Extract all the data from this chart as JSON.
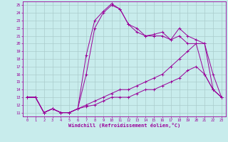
{
  "xlabel": "Windchill (Refroidissement éolien,°C)",
  "xlim": [
    -0.5,
    23.5
  ],
  "ylim": [
    10.5,
    25.5
  ],
  "xticks": [
    0,
    1,
    2,
    3,
    4,
    5,
    6,
    7,
    8,
    9,
    10,
    11,
    12,
    13,
    14,
    15,
    16,
    17,
    18,
    19,
    20,
    21,
    22,
    23
  ],
  "yticks": [
    11,
    12,
    13,
    14,
    15,
    16,
    17,
    18,
    19,
    20,
    21,
    22,
    23,
    24,
    25
  ],
  "bg_color": "#c8ecec",
  "line_color": "#990099",
  "grid_color": "#aacccc",
  "lines": [
    {
      "x": [
        0,
        1,
        2,
        3,
        4,
        5,
        6,
        7,
        8,
        9,
        10,
        11,
        12,
        13,
        14,
        15,
        16,
        17,
        18,
        19,
        20,
        21,
        22,
        23
      ],
      "y": [
        13,
        13,
        11,
        11.5,
        11,
        11,
        11.5,
        18.5,
        23,
        24.2,
        25.2,
        24.5,
        22.5,
        22,
        21,
        21.2,
        21.5,
        20.5,
        22,
        21,
        20.5,
        20,
        16,
        13
      ]
    },
    {
      "x": [
        0,
        1,
        2,
        3,
        4,
        5,
        6,
        7,
        8,
        9,
        10,
        11,
        12,
        13,
        14,
        15,
        16,
        17,
        18,
        19,
        20,
        21,
        22,
        23
      ],
      "y": [
        13,
        13,
        11,
        11.5,
        11,
        11,
        11.5,
        16,
        22,
        24,
        25,
        24.5,
        22.5,
        21.5,
        21,
        21,
        21,
        20.5,
        21,
        20,
        20,
        20,
        14,
        13
      ]
    },
    {
      "x": [
        0,
        1,
        2,
        3,
        4,
        5,
        6,
        7,
        8,
        9,
        10,
        11,
        12,
        13,
        14,
        15,
        16,
        17,
        18,
        19,
        20,
        21,
        22,
        23
      ],
      "y": [
        13,
        13,
        11,
        11.5,
        11,
        11,
        11.5,
        12,
        12.5,
        13,
        13.5,
        14,
        14,
        14.5,
        15,
        15.5,
        16,
        17,
        18,
        19,
        20,
        16,
        14,
        13
      ]
    },
    {
      "x": [
        0,
        1,
        2,
        3,
        4,
        5,
        6,
        7,
        8,
        9,
        10,
        11,
        12,
        13,
        14,
        15,
        16,
        17,
        18,
        19,
        20,
        21,
        22,
        23
      ],
      "y": [
        13,
        13,
        11,
        11.5,
        11,
        11,
        11.5,
        11.8,
        12,
        12.5,
        13,
        13,
        13,
        13.5,
        14,
        14,
        14.5,
        15,
        15.5,
        16.5,
        17,
        16,
        14,
        13
      ]
    }
  ]
}
